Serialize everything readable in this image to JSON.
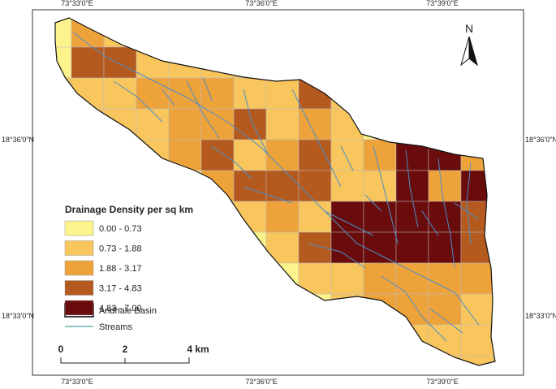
{
  "coordinates": {
    "top": [
      "73°33'0\"E",
      "73°36'0\"E",
      "73°39'0\"E"
    ],
    "bottom": [
      "73°33'0\"E",
      "73°36'0\"E",
      "73°39'0\"E"
    ],
    "left": [
      "18°36'0\"N",
      "18°33'0\"N"
    ],
    "right": [
      "18°36'0\"N",
      "18°33'0\"N"
    ]
  },
  "north_arrow": "N",
  "legend": {
    "title": "Drainage Density per sq km",
    "items": [
      {
        "label": "0.00 - 0.73",
        "color": "#fdf38c"
      },
      {
        "label": "0.73 - 1.88",
        "color": "#f8c65c"
      },
      {
        "label": "1.88 - 3.17",
        "color": "#eea23a"
      },
      {
        "label": "3.17 - 4.83",
        "color": "#b45a1f"
      },
      {
        "label": "4.83 - 7.00",
        "color": "#6a0b0c"
      }
    ],
    "basin": "Andhale Basin",
    "streams": "Streams"
  },
  "scale_bar": [
    "0",
    "2",
    "4 km"
  ]
}
